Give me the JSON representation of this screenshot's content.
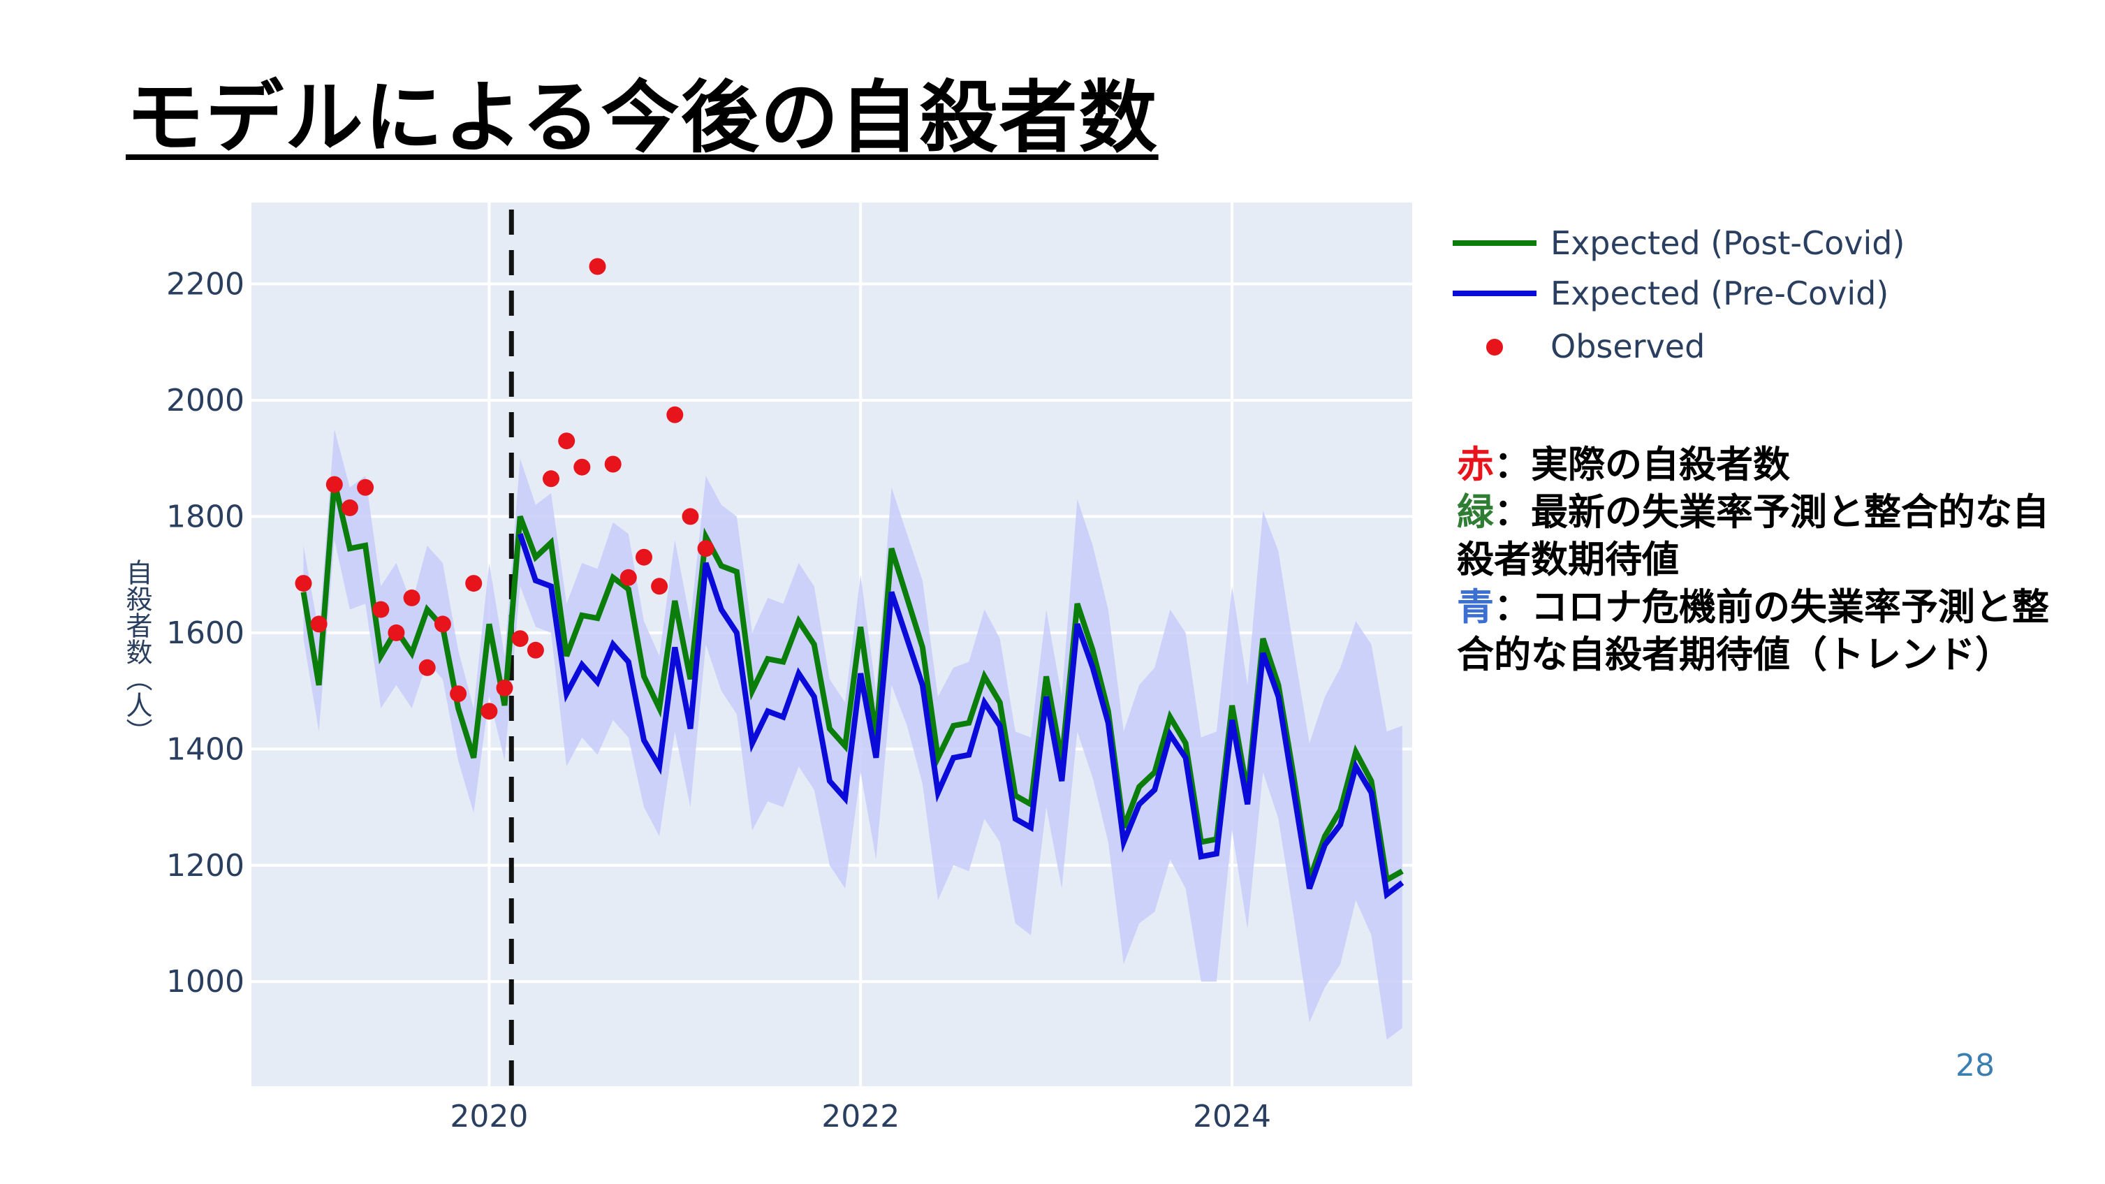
{
  "slide": {
    "title": "モデルによる今後の自殺者数",
    "page_number": "28"
  },
  "annotation": {
    "line1_key": "赤",
    "line1_text": "：実際の自殺者数",
    "line2_key": "緑",
    "line2_text": "：最新の失業率予測と整合的な自殺者数期待値",
    "line3_key": "青",
    "line3_text": "：コロナ危機前の失業率予測と整合的な自殺者期待値（トレンド）"
  },
  "colors": {
    "post_covid": "#0a7d0a",
    "pre_covid": "#0b0bd9",
    "observed": "#e8141b",
    "band": "#c8cdfa",
    "plot_bg": "#e5ecf6",
    "grid": "#ffffff"
  },
  "chart_data": {
    "type": "line",
    "title": "",
    "xlabel": "",
    "ylabel": "自殺者数（人）",
    "x_start": "2019-01",
    "xlim": [
      2018.72,
      2024.97
    ],
    "ylim": [
      820,
      2340
    ],
    "x_ticks": [
      2020,
      2022,
      2024
    ],
    "y_ticks": [
      1000,
      1200,
      1400,
      1600,
      1800,
      2000,
      2200
    ],
    "vertical_marker": 2020.12,
    "grid": true,
    "legend_position": "right-top",
    "series": [
      {
        "name": "Expected (Post-Covid)",
        "values": [
          1670,
          1510,
          1860,
          1745,
          1750,
          1560,
          1605,
          1565,
          1640,
          1610,
          1470,
          1385,
          1615,
          1475,
          1800,
          1730,
          1755,
          1560,
          1630,
          1625,
          1695,
          1675,
          1525,
          1470,
          1655,
          1520,
          1765,
          1715,
          1705,
          1500,
          1555,
          1550,
          1620,
          1580,
          1435,
          1405,
          1610,
          1420,
          1745,
          1660,
          1575,
          1385,
          1440,
          1445,
          1525,
          1480,
          1320,
          1305,
          1525,
          1380,
          1650,
          1570,
          1465,
          1265,
          1335,
          1360,
          1455,
          1410,
          1240,
          1245,
          1475,
          1325,
          1590,
          1510,
          1350,
          1175,
          1250,
          1295,
          1395,
          1345,
          1175,
          1190
        ]
      },
      {
        "name": "Expected (Pre-Covid)",
        "values": [
          null,
          null,
          null,
          null,
          null,
          null,
          null,
          null,
          null,
          null,
          null,
          null,
          null,
          null,
          1770,
          1690,
          1680,
          1495,
          1545,
          1515,
          1580,
          1550,
          1415,
          1370,
          1575,
          1435,
          1720,
          1640,
          1600,
          1410,
          1465,
          1455,
          1530,
          1490,
          1345,
          1315,
          1530,
          1385,
          1670,
          1590,
          1510,
          1325,
          1385,
          1390,
          1480,
          1440,
          1280,
          1265,
          1490,
          1345,
          1615,
          1540,
          1445,
          1240,
          1305,
          1330,
          1425,
          1385,
          1215,
          1220,
          1450,
          1305,
          1565,
          1490,
          1325,
          1160,
          1235,
          1270,
          1370,
          1325,
          1150,
          1170
        ]
      },
      {
        "name": "Observed",
        "values": [
          1685,
          1615,
          1855,
          1815,
          1850,
          1640,
          1600,
          1660,
          1540,
          1615,
          1495,
          1685,
          1465,
          1505,
          1590,
          1570,
          1865,
          1930,
          1885,
          2230,
          1890,
          1695,
          1730,
          1680,
          1975,
          1800,
          1745
        ]
      }
    ],
    "band_upper": [
      1750,
      1600,
      1950,
      1850,
      1870,
      1680,
      1720,
      1650,
      1750,
      1720,
      1570,
      1470,
      1720,
      1560,
      1900,
      1820,
      1840,
      1650,
      1720,
      1710,
      1790,
      1770,
      1620,
      1560,
      1760,
      1620,
      1870,
      1820,
      1800,
      1600,
      1660,
      1650,
      1720,
      1680,
      1520,
      1480,
      1700,
      1500,
      1850,
      1770,
      1690,
      1490,
      1540,
      1550,
      1640,
      1590,
      1430,
      1420,
      1640,
      1490,
      1830,
      1750,
      1640,
      1430,
      1510,
      1540,
      1640,
      1600,
      1420,
      1430,
      1680,
      1510,
      1810,
      1740,
      1570,
      1410,
      1490,
      1540,
      1620,
      1580,
      1430,
      1440
    ],
    "band_lower": [
      1590,
      1430,
      1760,
      1640,
      1650,
      1470,
      1510,
      1470,
      1550,
      1520,
      1380,
      1290,
      1490,
      1380,
      1680,
      1610,
      1600,
      1370,
      1420,
      1390,
      1450,
      1420,
      1300,
      1250,
      1430,
      1300,
      1580,
      1500,
      1460,
      1260,
      1310,
      1300,
      1370,
      1330,
      1200,
      1160,
      1360,
      1210,
      1510,
      1440,
      1340,
      1140,
      1200,
      1190,
      1280,
      1240,
      1100,
      1080,
      1300,
      1160,
      1430,
      1350,
      1240,
      1030,
      1100,
      1120,
      1210,
      1160,
      1000,
      1000,
      1260,
      1090,
      1360,
      1280,
      1110,
      930,
      990,
      1030,
      1140,
      1080,
      900,
      920
    ]
  }
}
